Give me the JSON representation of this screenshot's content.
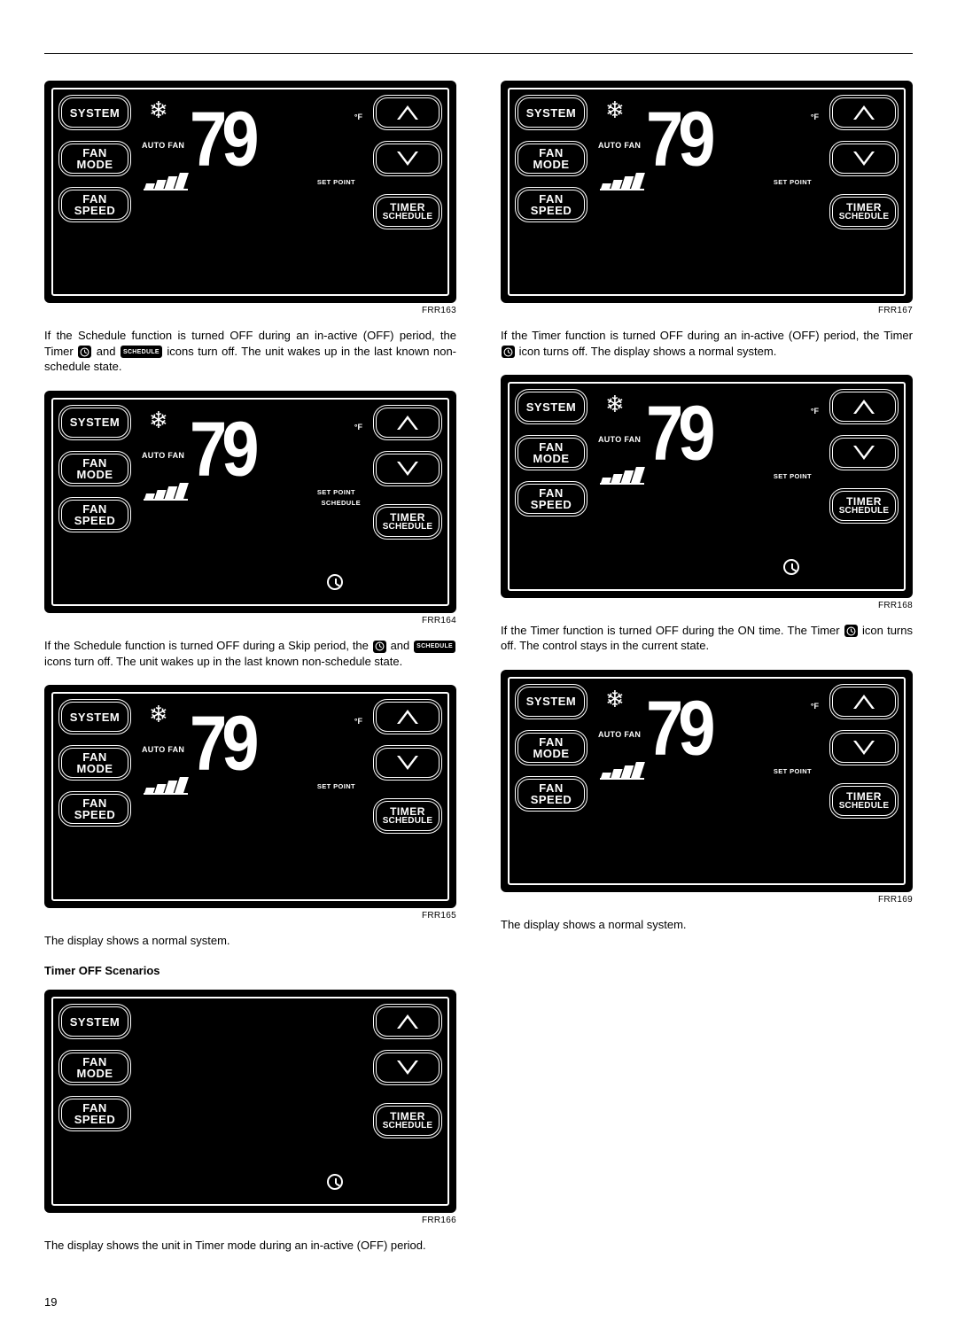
{
  "page_number": "19",
  "section_heading": "Timer OFF Scenarios",
  "inline_labels": {
    "schedule": "SCHEDULE"
  },
  "buttons": {
    "system": "SYSTEM",
    "fan_mode_l1": "FAN",
    "fan_mode_l2": "MODE",
    "fan_speed_l1": "FAN",
    "fan_speed_l2": "SPEED",
    "timer_l1": "TIMER",
    "timer_l2": "SCHEDULE"
  },
  "display": {
    "auto_fan": "AUTO FAN",
    "temp": "79",
    "deg": "°F",
    "set_point": "SET POINT",
    "schedule": "SCHEDULE"
  },
  "figures": [
    {
      "id": "FRR163",
      "caption_pre": "If the Schedule function is turned OFF during an in-active (OFF) period, the Timer ",
      "caption_mid": " and ",
      "caption_post": " icons turn off. The unit wakes up in the last known non-schedule state.",
      "show_snow": true,
      "show_autofan": true,
      "show_temp": true,
      "show_setpoint": true,
      "show_schedule_label": false,
      "show_bars": true,
      "show_clock": false,
      "icons": [
        "clock",
        "schedule"
      ]
    },
    {
      "id": "FRR164",
      "caption_pre": "If the Schedule function is turned OFF during a Skip period, the ",
      "caption_mid": " and ",
      "caption_post": " icons turn off. The unit wakes up in the last known non-schedule state.",
      "show_snow": true,
      "show_autofan": true,
      "show_temp": true,
      "show_setpoint": true,
      "show_schedule_label": true,
      "show_bars": true,
      "show_clock": true,
      "icons": [
        "clock",
        "schedule"
      ]
    },
    {
      "id": "FRR165",
      "caption_pre": "The display shows a normal system.",
      "caption_mid": "",
      "caption_post": "",
      "show_snow": true,
      "show_autofan": true,
      "show_temp": true,
      "show_setpoint": true,
      "show_schedule_label": false,
      "show_bars": true,
      "show_clock": false,
      "icons": []
    },
    {
      "id": "FRR166",
      "caption_pre": "The display shows the unit in Timer mode during an in-active (OFF) period.",
      "caption_mid": "",
      "caption_post": "",
      "show_snow": false,
      "show_autofan": false,
      "show_temp": false,
      "show_setpoint": false,
      "show_schedule_label": false,
      "show_bars": false,
      "show_clock": true,
      "icons": []
    },
    {
      "id": "FRR167",
      "caption_pre": "If the Timer function is turned OFF during an in-active (OFF) period, the Timer ",
      "caption_mid": "",
      "caption_post": " icon turns off. The display shows a normal system.",
      "show_snow": true,
      "show_autofan": true,
      "show_temp": true,
      "show_setpoint": true,
      "show_schedule_label": false,
      "show_bars": true,
      "show_clock": false,
      "icons": [
        "clock"
      ]
    },
    {
      "id": "FRR168",
      "caption_pre": "If the Timer function is turned OFF during the ON time. The Timer ",
      "caption_mid": "",
      "caption_post": " icon turns off. The control stays in the current state.",
      "show_snow": true,
      "show_autofan": true,
      "show_temp": true,
      "show_setpoint": true,
      "show_schedule_label": false,
      "show_bars": true,
      "show_clock": true,
      "icons": [
        "clock"
      ]
    },
    {
      "id": "FRR169",
      "caption_pre": "The display shows a normal system.",
      "caption_mid": "",
      "caption_post": "",
      "show_snow": true,
      "show_autofan": true,
      "show_temp": true,
      "show_setpoint": true,
      "show_schedule_label": false,
      "show_bars": true,
      "show_clock": false,
      "icons": []
    }
  ],
  "layout": {
    "left_indices": [
      0,
      1,
      2,
      3
    ],
    "right_indices": [
      4,
      5,
      6
    ],
    "heading_before_index": 3
  }
}
